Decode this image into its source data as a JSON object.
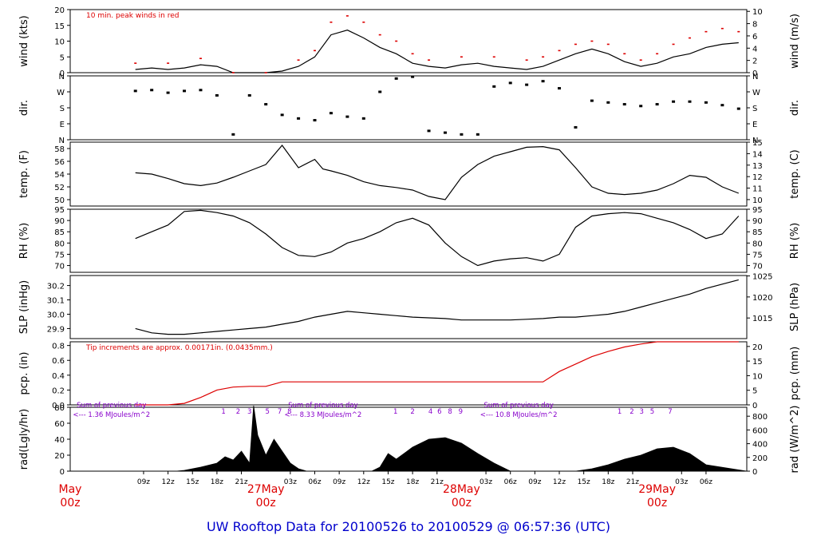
{
  "footer_title": "UW Rooftop Data for 20100526  to  20100529 @ 06:57:36  (UTC)",
  "colors": {
    "axis": "#000000",
    "data": "#000000",
    "peak": "#dd0000",
    "date_label": "#dd0000",
    "note": "#dd0000",
    "solar_note": "#8800cc",
    "footer": "#0000cc"
  },
  "chart_data": [
    {
      "type": "line",
      "panel": "wind",
      "ylabel_left": "wind (kts)",
      "ylabel_right": "wind (m/s)",
      "ylim": [
        0,
        20
      ],
      "right_ylim": [
        0,
        10.29
      ],
      "yticks_left": [
        "0",
        "5",
        "10",
        "15",
        "20"
      ],
      "yticks_right": [
        "0",
        "2",
        "4",
        "6",
        "8",
        "10"
      ],
      "annotation": "10 min. peak winds in red",
      "series": [
        {
          "name": "wind",
          "color": "#000000",
          "x": [
            0,
            2,
            4,
            6,
            8,
            10,
            12,
            14,
            16,
            18,
            20,
            22,
            24,
            26,
            28,
            30,
            32,
            34,
            36,
            38,
            40,
            42,
            44,
            46,
            48,
            50,
            52,
            54,
            56,
            58,
            60,
            62,
            64,
            66,
            68,
            70,
            72,
            74
          ],
          "y": [
            1,
            1.5,
            1,
            1.5,
            2.5,
            2,
            0,
            0,
            0,
            0.5,
            2,
            5,
            12,
            13.5,
            11,
            8,
            6,
            3,
            2,
            1.5,
            2.5,
            3,
            2,
            1.5,
            1,
            2,
            4,
            6,
            7.5,
            6,
            3.5,
            2,
            3,
            5,
            6,
            8,
            9,
            9.5
          ]
        },
        {
          "name": "peak",
          "color": "#dd0000",
          "x": [
            0,
            4,
            8,
            12,
            16,
            20,
            22,
            24,
            26,
            28,
            30,
            32,
            34,
            36,
            40,
            44,
            48,
            50,
            52,
            54,
            56,
            58,
            60,
            62,
            64,
            66,
            68,
            70,
            72,
            74
          ],
          "y": [
            3,
            3,
            4.5,
            0,
            0,
            4,
            7,
            16,
            18,
            16,
            12,
            10,
            6,
            4,
            5,
            5,
            4,
            5,
            7,
            9,
            10,
            9,
            6,
            4,
            6,
            9,
            11,
            13,
            14,
            13
          ]
        }
      ]
    },
    {
      "type": "scatter",
      "panel": "dir",
      "ylabel_left": "dir.",
      "ylabel_right": "dir.",
      "ylim": [
        0,
        360
      ],
      "yticks_left": [
        "N",
        "E",
        "S",
        "W",
        "N"
      ],
      "yticks_right": [
        "N",
        "E",
        "S",
        "W",
        "N"
      ],
      "series": [
        {
          "name": "direction",
          "color": "#000000",
          "x": [
            0,
            2,
            4,
            6,
            8,
            10,
            12,
            14,
            16,
            18,
            20,
            22,
            24,
            26,
            28,
            30,
            32,
            34,
            36,
            38,
            40,
            42,
            44,
            46,
            48,
            50,
            52,
            54,
            56,
            58,
            60,
            62,
            64,
            66,
            68,
            70,
            72,
            74
          ],
          "y": [
            275,
            280,
            265,
            275,
            280,
            250,
            30,
            250,
            200,
            140,
            120,
            110,
            150,
            130,
            120,
            270,
            345,
            355,
            50,
            40,
            30,
            30,
            300,
            320,
            310,
            330,
            290,
            70,
            220,
            210,
            200,
            190,
            200,
            215,
            215,
            210,
            195,
            175
          ]
        }
      ]
    },
    {
      "type": "line",
      "panel": "temp",
      "ylabel_left": "temp. (F)",
      "ylabel_right": "temp. (C)",
      "ylim": [
        49,
        59
      ],
      "right_ylim": [
        9.44,
        15
      ],
      "yticks_left": [
        "50",
        "52",
        "54",
        "56",
        "58"
      ],
      "yticks_right": [
        "10",
        "11",
        "12",
        "13",
        "14",
        "15"
      ],
      "series": [
        {
          "name": "temperature",
          "color": "#000000",
          "x": [
            0,
            2,
            4,
            6,
            8,
            10,
            12,
            14,
            16,
            18,
            20,
            22,
            23,
            24,
            26,
            28,
            30,
            32,
            34,
            36,
            38,
            40,
            42,
            44,
            46,
            48,
            50,
            52,
            54,
            56,
            58,
            60,
            62,
            64,
            66,
            68,
            70,
            72,
            74
          ],
          "y": [
            54.2,
            54,
            53.3,
            52.5,
            52.2,
            52.6,
            53.5,
            54.5,
            55.5,
            58.5,
            55,
            56.3,
            54.8,
            54.5,
            53.8,
            52.8,
            52.2,
            51.9,
            51.5,
            50.5,
            50,
            53.5,
            55.5,
            56.8,
            57.5,
            58.2,
            58.3,
            57.8,
            55,
            52,
            51,
            50.8,
            51,
            51.5,
            52.5,
            53.8,
            53.5,
            52,
            51
          ]
        }
      ]
    },
    {
      "type": "line",
      "panel": "rh",
      "ylabel_left": "RH (%)",
      "ylabel_right": "RH (%)",
      "ylim": [
        67,
        95
      ],
      "yticks_left": [
        "70",
        "75",
        "80",
        "85",
        "90",
        "95"
      ],
      "yticks_right": [
        "70",
        "75",
        "80",
        "85",
        "90",
        "95"
      ],
      "series": [
        {
          "name": "relative humidity",
          "color": "#000000",
          "x": [
            0,
            2,
            4,
            6,
            8,
            10,
            12,
            14,
            16,
            18,
            20,
            22,
            24,
            26,
            28,
            30,
            32,
            34,
            36,
            38,
            40,
            42,
            44,
            46,
            48,
            50,
            52,
            54,
            56,
            58,
            60,
            62,
            64,
            66,
            68,
            70,
            72,
            74
          ],
          "y": [
            82,
            85,
            88,
            94,
            94.5,
            93.5,
            92,
            89,
            84,
            78,
            74.5,
            74,
            76,
            80,
            82,
            85,
            89,
            91,
            88,
            80,
            74,
            70,
            72,
            73,
            73.5,
            72,
            75,
            87,
            92,
            93,
            93.5,
            93,
            91,
            89,
            86,
            82,
            84,
            92
          ]
        }
      ]
    },
    {
      "type": "line",
      "panel": "slp",
      "ylabel_left": "SLP (inHg)",
      "ylabel_right": "SLP (hPa)",
      "ylim": [
        29.83,
        30.27
      ],
      "right_ylim": [
        1010.1,
        1025.1
      ],
      "yticks_left": [
        "29.9",
        "30.0",
        "30.1",
        "30.2"
      ],
      "yticks_right": [
        "1015",
        "1020",
        "1025"
      ],
      "series": [
        {
          "name": "sea level pressure",
          "color": "#000000",
          "x": [
            0,
            2,
            4,
            6,
            8,
            10,
            12,
            14,
            16,
            18,
            20,
            22,
            24,
            26,
            28,
            30,
            32,
            34,
            36,
            38,
            40,
            42,
            44,
            46,
            48,
            50,
            52,
            54,
            56,
            58,
            60,
            62,
            64,
            66,
            68,
            70,
            72,
            74
          ],
          "y": [
            29.9,
            29.87,
            29.86,
            29.86,
            29.87,
            29.88,
            29.89,
            29.9,
            29.91,
            29.93,
            29.95,
            29.98,
            30.0,
            30.02,
            30.01,
            30.0,
            29.99,
            29.98,
            29.975,
            29.97,
            29.96,
            29.96,
            29.96,
            29.96,
            29.965,
            29.97,
            29.98,
            29.98,
            29.99,
            30.0,
            30.02,
            30.05,
            30.08,
            30.11,
            30.14,
            30.18,
            30.21,
            30.24
          ]
        }
      ]
    },
    {
      "type": "line",
      "panel": "pcp",
      "ylabel_left": "pcp. (in)",
      "ylabel_right": "pcp. (mm)",
      "ylim": [
        0,
        0.85
      ],
      "right_ylim": [
        0,
        21.6
      ],
      "yticks_left": [
        "0.0",
        "0.2",
        "0.4",
        "0.6",
        "0.8"
      ],
      "yticks_right": [
        "0",
        "5",
        "10",
        "15",
        "20"
      ],
      "annotation": "Tip increments are approx. 0.00171in. (0.0435mm.)",
      "series": [
        {
          "name": "precipitation",
          "color": "#dd0000",
          "x": [
            0,
            4,
            6,
            8,
            10,
            12,
            14,
            16,
            18,
            20,
            22,
            24,
            26,
            28,
            30,
            32,
            34,
            36,
            38,
            40,
            42,
            44,
            46,
            48,
            50,
            52,
            54,
            56,
            58,
            60,
            62,
            64,
            66,
            68,
            70,
            72,
            74
          ],
          "y": [
            0,
            0,
            0.02,
            0.1,
            0.2,
            0.24,
            0.25,
            0.25,
            0.31,
            0.31,
            0.31,
            0.31,
            0.31,
            0.31,
            0.31,
            0.31,
            0.31,
            0.31,
            0.31,
            0.31,
            0.31,
            0.31,
            0.31,
            0.31,
            0.31,
            0.45,
            0.55,
            0.65,
            0.72,
            0.78,
            0.82,
            0.85,
            0.85,
            0.85,
            0.85,
            0.85,
            0.85
          ]
        }
      ]
    },
    {
      "type": "area",
      "panel": "rad",
      "ylabel_left": "rad(Lgly/hr)",
      "ylabel_right": "rad (W/m^2)",
      "ylim": [
        0,
        80
      ],
      "right_ylim": [
        0,
        930
      ],
      "yticks_left": [
        "0",
        "20",
        "40",
        "60",
        "80"
      ],
      "yticks_right": [
        "0",
        "200",
        "400",
        "600",
        "800"
      ],
      "daily_notes": [
        {
          "x": 0,
          "line1": "Sum of previous day",
          "line2": "<--- 1.36 MJoules/m^2"
        },
        {
          "x": 24,
          "line1": "Sum of previous day",
          "line2": "<--- 8.33 MJoules/m^2"
        },
        {
          "x": 48,
          "line1": "Sum of previous day",
          "line2": "<--- 10.8 MJoules/m^2"
        }
      ],
      "hour_marks": [
        {
          "x": 10.8,
          "label": "1"
        },
        {
          "x": 12.6,
          "label": "2"
        },
        {
          "x": 14.0,
          "label": "3"
        },
        {
          "x": 16.2,
          "label": "5"
        },
        {
          "x": 17.7,
          "label": "7"
        },
        {
          "x": 18.9,
          "label": "8"
        },
        {
          "x": 31.9,
          "label": "1"
        },
        {
          "x": 34.0,
          "label": "2"
        },
        {
          "x": 36.2,
          "label": "4"
        },
        {
          "x": 37.3,
          "label": "6"
        },
        {
          "x": 38.6,
          "label": "8"
        },
        {
          "x": 39.9,
          "label": "9"
        },
        {
          "x": 59.4,
          "label": "1"
        },
        {
          "x": 60.9,
          "label": "2"
        },
        {
          "x": 62.1,
          "label": "3"
        },
        {
          "x": 63.4,
          "label": "5"
        },
        {
          "x": 65.6,
          "label": "7"
        }
      ],
      "series": [
        {
          "name": "solar radiation",
          "color": "#000000",
          "x": [
            0,
            5,
            6,
            8,
            10,
            11,
            12,
            13,
            14,
            14.5,
            15,
            16,
            17,
            18,
            19,
            20,
            21,
            29,
            30,
            31,
            32,
            34,
            36,
            38,
            40,
            42,
            44,
            46,
            53,
            54,
            56,
            58,
            60,
            62,
            64,
            66,
            68,
            70,
            75
          ],
          "y": [
            0,
            0,
            1,
            5,
            10,
            18,
            14,
            25,
            10,
            82,
            45,
            20,
            40,
            25,
            10,
            3,
            0,
            0,
            5,
            22,
            15,
            30,
            40,
            42,
            35,
            22,
            10,
            0,
            0,
            0,
            3,
            8,
            15,
            20,
            28,
            30,
            22,
            8,
            0
          ]
        }
      ]
    }
  ],
  "x_axis": {
    "xlim": [
      -8,
      75
    ],
    "ticks": [
      {
        "x": 1,
        "label": "09z"
      },
      {
        "x": 4,
        "label": "12z"
      },
      {
        "x": 7,
        "label": "15z"
      },
      {
        "x": 10,
        "label": "18z"
      },
      {
        "x": 13,
        "label": "21z"
      },
      {
        "x": 19,
        "label": "03z"
      },
      {
        "x": 22,
        "label": "06z"
      },
      {
        "x": 25,
        "label": "09z"
      },
      {
        "x": 28,
        "label": "12z"
      },
      {
        "x": 31,
        "label": "15z"
      },
      {
        "x": 34,
        "label": "18z"
      },
      {
        "x": 37,
        "label": "21z"
      },
      {
        "x": 43,
        "label": "03z"
      },
      {
        "x": 46,
        "label": "06z"
      },
      {
        "x": 49,
        "label": "09z"
      },
      {
        "x": 52,
        "label": "12z"
      },
      {
        "x": 55,
        "label": "15z"
      },
      {
        "x": 58,
        "label": "18z"
      },
      {
        "x": 61,
        "label": "21z"
      },
      {
        "x": 67,
        "label": "03z"
      },
      {
        "x": 70,
        "label": "06z"
      }
    ],
    "date_labels": [
      {
        "x": -8,
        "line1": "May",
        "line2": "00z"
      },
      {
        "x": 16,
        "line1": "27May",
        "line2": "00z"
      },
      {
        "x": 40,
        "line1": "28May",
        "line2": "00z"
      },
      {
        "x": 64,
        "line1": "29May",
        "line2": "00z"
      }
    ]
  }
}
